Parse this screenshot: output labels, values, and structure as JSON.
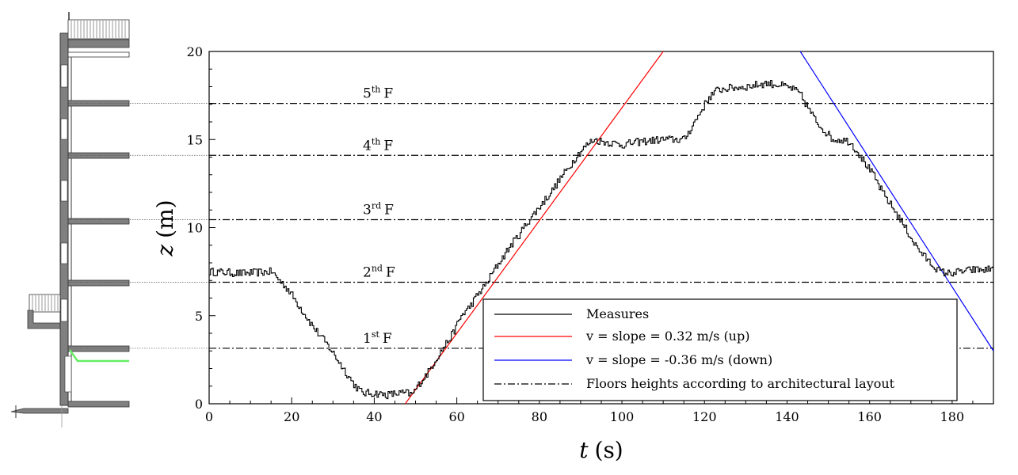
{
  "chart_data": {
    "type": "line",
    "xlabel": {
      "var": "t",
      "unit": "(s)"
    },
    "ylabel": {
      "var": "z",
      "unit": "(m)"
    },
    "xlim": [
      0,
      190
    ],
    "ylim": [
      0,
      20
    ],
    "xticks": [
      0,
      20,
      40,
      60,
      80,
      100,
      120,
      140,
      160,
      180
    ],
    "yticks": [
      0,
      5,
      10,
      15,
      20
    ],
    "grid": false,
    "legend_position": "bottom-right",
    "series": [
      {
        "name": "Measures",
        "color": "#000000",
        "style": "solid",
        "x": [
          0,
          8,
          15,
          17,
          19,
          21,
          23,
          25,
          27,
          29,
          31,
          33,
          35,
          37,
          40,
          43,
          46,
          48,
          49,
          51,
          53,
          55,
          57,
          59,
          61,
          63,
          65,
          67,
          69,
          71,
          73,
          75,
          77,
          79,
          81,
          83,
          85,
          87,
          89,
          91,
          93,
          95,
          100,
          105,
          110,
          115,
          117,
          119,
          121,
          123,
          125,
          130,
          135,
          138,
          141,
          143,
          145,
          147,
          149,
          151,
          153,
          155,
          157,
          159,
          161,
          163,
          165,
          167,
          169,
          171,
          173,
          175,
          177,
          179,
          182,
          185,
          188,
          190
        ],
        "y": [
          7.5,
          7.4,
          7.5,
          7.0,
          6.5,
          5.8,
          5.1,
          4.4,
          3.8,
          3.2,
          2.5,
          1.8,
          1.1,
          0.6,
          0.6,
          0.5,
          0.6,
          0.6,
          0.5,
          1.2,
          1.8,
          2.6,
          3.3,
          4.0,
          5.0,
          5.5,
          6.2,
          6.8,
          7.6,
          8.3,
          9.0,
          9.6,
          10.3,
          10.9,
          11.5,
          12.1,
          12.8,
          13.4,
          14.1,
          14.6,
          15.0,
          14.9,
          14.7,
          14.9,
          15.0,
          15.0,
          15.8,
          16.6,
          17.4,
          17.8,
          17.9,
          18.0,
          18.2,
          18.1,
          17.9,
          17.6,
          16.8,
          16.0,
          15.5,
          15.0,
          15.0,
          14.9,
          14.3,
          13.6,
          12.9,
          12.0,
          11.3,
          10.6,
          9.8,
          9.0,
          8.4,
          7.9,
          7.5,
          7.4,
          7.5,
          7.6,
          7.6,
          7.7
        ]
      },
      {
        "name": "v = slope = 0.32 m/s (up)",
        "color": "#ff0000",
        "style": "solid",
        "x": [
          47.5,
          110.0
        ],
        "y": [
          0,
          20
        ]
      },
      {
        "name": "v = slope = -0.36 m/s (down)",
        "color": "#0000ff",
        "style": "solid",
        "x": [
          143.2,
          190.0
        ],
        "y": [
          20,
          3.0
        ]
      },
      {
        "name": "Floors heights according to architectural layout",
        "color": "#000000",
        "style": "dash-dot"
      }
    ],
    "floors": [
      {
        "label_base": "1",
        "label_sup": "st",
        "label_suffix": "F",
        "z": 3.15
      },
      {
        "label_base": "2",
        "label_sup": "nd",
        "label_suffix": "F",
        "z": 6.9
      },
      {
        "label_base": "3",
        "label_sup": "rd",
        "label_suffix": "F",
        "z": 10.45
      },
      {
        "label_base": "4",
        "label_sup": "th",
        "label_suffix": "F",
        "z": 14.1
      },
      {
        "label_base": "5",
        "label_sup": "th",
        "label_suffix": "F",
        "z": 17.05
      }
    ],
    "legend": [
      {
        "label": "Measures",
        "color": "#000000",
        "style": "solid"
      },
      {
        "label": "v = slope = 0.32 m/s (up)",
        "color": "#ff0000",
        "style": "solid"
      },
      {
        "label": "v = slope = -0.36 m/s (down)",
        "color": "#0000ff",
        "style": "solid"
      },
      {
        "label": "Floors heights according to architectural layout",
        "color": "#000000",
        "style": "dash-dot"
      }
    ]
  },
  "colors": {
    "wall": "#808080",
    "wall_edge": "#333333",
    "path_highlight": "#66ee66"
  }
}
